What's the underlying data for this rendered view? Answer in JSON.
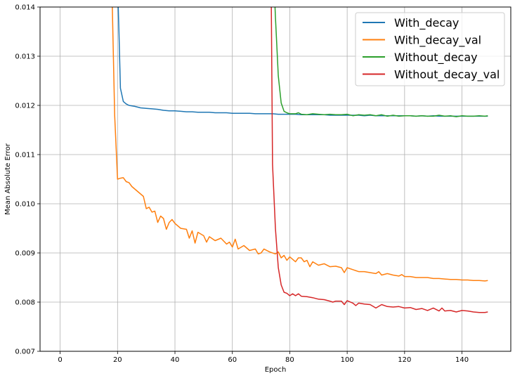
{
  "chart_data": {
    "type": "line",
    "title": "",
    "xlabel": "Epoch",
    "ylabel": "Mean Absolute Error",
    "xlim": [
      -7,
      157
    ],
    "ylim": [
      0.007,
      0.014
    ],
    "xticks": [
      0,
      20,
      40,
      60,
      80,
      100,
      120,
      140
    ],
    "yticks": [
      0.007,
      0.008,
      0.009,
      0.01,
      0.011,
      0.012,
      0.013,
      0.014
    ],
    "ytick_labels": [
      "0.007",
      "0.008",
      "0.009",
      "0.010",
      "0.011",
      "0.012",
      "0.013",
      "0.014"
    ],
    "grid": true,
    "legend_position": "upper-right",
    "series": [
      {
        "name": "With_decay",
        "color": "#1f77b4",
        "points": [
          [
            20,
            0.0145
          ],
          [
            20.5,
            0.0135
          ],
          [
            21,
            0.01235
          ],
          [
            22,
            0.01208
          ],
          [
            23,
            0.01203
          ],
          [
            24,
            0.012
          ],
          [
            26,
            0.01198
          ],
          [
            28,
            0.01195
          ],
          [
            30,
            0.01194
          ],
          [
            32,
            0.01193
          ],
          [
            34,
            0.01192
          ],
          [
            36,
            0.0119
          ],
          [
            38,
            0.01189
          ],
          [
            40,
            0.01189
          ],
          [
            42,
            0.01188
          ],
          [
            44,
            0.01187
          ],
          [
            46,
            0.01187
          ],
          [
            48,
            0.01186
          ],
          [
            50,
            0.01186
          ],
          [
            52,
            0.01186
          ],
          [
            54,
            0.01185
          ],
          [
            56,
            0.01185
          ],
          [
            58,
            0.01185
          ],
          [
            60,
            0.01184
          ],
          [
            62,
            0.01184
          ],
          [
            64,
            0.01184
          ],
          [
            66,
            0.01184
          ],
          [
            68,
            0.01183
          ],
          [
            70,
            0.01183
          ],
          [
            72,
            0.01183
          ],
          [
            74,
            0.01183
          ],
          [
            76,
            0.01182
          ],
          [
            78,
            0.01182
          ],
          [
            80,
            0.01182
          ],
          [
            82,
            0.01182
          ],
          [
            84,
            0.01181
          ],
          [
            86,
            0.01181
          ],
          [
            88,
            0.01181
          ],
          [
            90,
            0.01181
          ],
          [
            92,
            0.01181
          ],
          [
            94,
            0.0118
          ],
          [
            96,
            0.0118
          ],
          [
            98,
            0.0118
          ],
          [
            100,
            0.0118
          ],
          [
            102,
            0.0118
          ],
          [
            104,
            0.0118
          ],
          [
            106,
            0.01179
          ],
          [
            108,
            0.0118
          ],
          [
            110,
            0.01179
          ],
          [
            112,
            0.01179
          ],
          [
            114,
            0.01179
          ],
          [
            116,
            0.01179
          ],
          [
            118,
            0.01179
          ],
          [
            120,
            0.01179
          ],
          [
            122,
            0.01179
          ],
          [
            124,
            0.01178
          ],
          [
            126,
            0.01179
          ],
          [
            128,
            0.01178
          ],
          [
            130,
            0.01179
          ],
          [
            132,
            0.01178
          ],
          [
            134,
            0.01178
          ],
          [
            136,
            0.01178
          ],
          [
            138,
            0.01178
          ],
          [
            140,
            0.01178
          ],
          [
            142,
            0.01178
          ],
          [
            144,
            0.01178
          ],
          [
            146,
            0.01178
          ],
          [
            148,
            0.01178
          ],
          [
            149,
            0.01178
          ]
        ]
      },
      {
        "name": "With_decay_val",
        "color": "#ff7f0e",
        "points": [
          [
            18,
            0.0145
          ],
          [
            19,
            0.0118
          ],
          [
            20,
            0.0105
          ],
          [
            21,
            0.01052
          ],
          [
            22,
            0.01053
          ],
          [
            23,
            0.01045
          ],
          [
            24,
            0.01043
          ],
          [
            25,
            0.01035
          ],
          [
            26,
            0.0103
          ],
          [
            27,
            0.01025
          ],
          [
            28,
            0.0102
          ],
          [
            29,
            0.01015
          ],
          [
            30,
            0.0099
          ],
          [
            31,
            0.00993
          ],
          [
            32,
            0.00983
          ],
          [
            33,
            0.00985
          ],
          [
            34,
            0.00962
          ],
          [
            35,
            0.00975
          ],
          [
            36,
            0.0097
          ],
          [
            37,
            0.00948
          ],
          [
            38,
            0.00962
          ],
          [
            39,
            0.00968
          ],
          [
            40,
            0.0096
          ],
          [
            42,
            0.0095
          ],
          [
            44,
            0.00948
          ],
          [
            45,
            0.0093
          ],
          [
            46,
            0.00945
          ],
          [
            47,
            0.0092
          ],
          [
            48,
            0.00942
          ],
          [
            50,
            0.00935
          ],
          [
            51,
            0.00922
          ],
          [
            52,
            0.00933
          ],
          [
            54,
            0.00925
          ],
          [
            56,
            0.0093
          ],
          [
            58,
            0.00918
          ],
          [
            59,
            0.00922
          ],
          [
            60,
            0.00912
          ],
          [
            61,
            0.00928
          ],
          [
            62,
            0.00908
          ],
          [
            64,
            0.00915
          ],
          [
            66,
            0.00905
          ],
          [
            68,
            0.00908
          ],
          [
            69,
            0.00898
          ],
          [
            70,
            0.009
          ],
          [
            71,
            0.00908
          ],
          [
            73,
            0.00902
          ],
          [
            75,
            0.00898
          ],
          [
            76,
            0.00902
          ],
          [
            77,
            0.0089
          ],
          [
            78,
            0.00895
          ],
          [
            79,
            0.00885
          ],
          [
            80,
            0.00892
          ],
          [
            82,
            0.00882
          ],
          [
            83,
            0.0089
          ],
          [
            84,
            0.0089
          ],
          [
            85,
            0.00882
          ],
          [
            86,
            0.00885
          ],
          [
            87,
            0.00872
          ],
          [
            88,
            0.00882
          ],
          [
            90,
            0.00875
          ],
          [
            92,
            0.00878
          ],
          [
            94,
            0.00872
          ],
          [
            96,
            0.00873
          ],
          [
            98,
            0.0087
          ],
          [
            99,
            0.0086
          ],
          [
            100,
            0.0087
          ],
          [
            102,
            0.00866
          ],
          [
            104,
            0.00862
          ],
          [
            106,
            0.00862
          ],
          [
            108,
            0.0086
          ],
          [
            110,
            0.00858
          ],
          [
            111,
            0.00862
          ],
          [
            112,
            0.00855
          ],
          [
            114,
            0.00858
          ],
          [
            116,
            0.00855
          ],
          [
            118,
            0.00853
          ],
          [
            119,
            0.00856
          ],
          [
            120,
            0.00852
          ],
          [
            122,
            0.00852
          ],
          [
            124,
            0.0085
          ],
          [
            126,
            0.0085
          ],
          [
            128,
            0.0085
          ],
          [
            130,
            0.00848
          ],
          [
            132,
            0.00848
          ],
          [
            134,
            0.00847
          ],
          [
            136,
            0.00846
          ],
          [
            138,
            0.00846
          ],
          [
            140,
            0.00845
          ],
          [
            142,
            0.00845
          ],
          [
            144,
            0.00844
          ],
          [
            146,
            0.00844
          ],
          [
            148,
            0.00843
          ],
          [
            149,
            0.00844
          ]
        ]
      },
      {
        "name": "Without_decay",
        "color": "#2ca02c",
        "points": [
          [
            74.5,
            0.0145
          ],
          [
            75,
            0.0138
          ],
          [
            76,
            0.0126
          ],
          [
            77,
            0.01205
          ],
          [
            78,
            0.01188
          ],
          [
            79,
            0.01185
          ],
          [
            80,
            0.01183
          ],
          [
            82,
            0.01183
          ],
          [
            83,
            0.01185
          ],
          [
            84,
            0.01182
          ],
          [
            86,
            0.01181
          ],
          [
            88,
            0.01183
          ],
          [
            90,
            0.01182
          ],
          [
            92,
            0.01181
          ],
          [
            94,
            0.01182
          ],
          [
            96,
            0.01181
          ],
          [
            98,
            0.01181
          ],
          [
            100,
            0.01182
          ],
          [
            102,
            0.01179
          ],
          [
            104,
            0.01181
          ],
          [
            106,
            0.0118
          ],
          [
            108,
            0.01181
          ],
          [
            110,
            0.01179
          ],
          [
            112,
            0.01181
          ],
          [
            114,
            0.01178
          ],
          [
            116,
            0.0118
          ],
          [
            118,
            0.01178
          ],
          [
            120,
            0.01179
          ],
          [
            122,
            0.01179
          ],
          [
            124,
            0.01178
          ],
          [
            126,
            0.01179
          ],
          [
            128,
            0.01178
          ],
          [
            130,
            0.01178
          ],
          [
            132,
            0.0118
          ],
          [
            134,
            0.01178
          ],
          [
            136,
            0.01179
          ],
          [
            138,
            0.01177
          ],
          [
            140,
            0.01179
          ],
          [
            142,
            0.01178
          ],
          [
            144,
            0.01178
          ],
          [
            146,
            0.01179
          ],
          [
            148,
            0.01178
          ],
          [
            149,
            0.01179
          ]
        ]
      },
      {
        "name": "Without_decay_val",
        "color": "#d62728",
        "points": [
          [
            73.5,
            0.0145
          ],
          [
            74,
            0.0108
          ],
          [
            75,
            0.0095
          ],
          [
            76,
            0.0087
          ],
          [
            77,
            0.00835
          ],
          [
            78,
            0.0082
          ],
          [
            79,
            0.00818
          ],
          [
            80,
            0.00813
          ],
          [
            81,
            0.00817
          ],
          [
            82,
            0.00813
          ],
          [
            83,
            0.00817
          ],
          [
            84,
            0.00812
          ],
          [
            86,
            0.00811
          ],
          [
            88,
            0.00809
          ],
          [
            90,
            0.00806
          ],
          [
            92,
            0.00805
          ],
          [
            94,
            0.00802
          ],
          [
            95,
            0.008
          ],
          [
            96,
            0.00802
          ],
          [
            98,
            0.00802
          ],
          [
            99,
            0.00795
          ],
          [
            100,
            0.00803
          ],
          [
            102,
            0.00798
          ],
          [
            103,
            0.00793
          ],
          [
            104,
            0.00798
          ],
          [
            106,
            0.00796
          ],
          [
            108,
            0.00795
          ],
          [
            110,
            0.00788
          ],
          [
            112,
            0.00795
          ],
          [
            114,
            0.00791
          ],
          [
            116,
            0.0079
          ],
          [
            118,
            0.00791
          ],
          [
            120,
            0.00788
          ],
          [
            122,
            0.00789
          ],
          [
            124,
            0.00785
          ],
          [
            126,
            0.00787
          ],
          [
            128,
            0.00783
          ],
          [
            130,
            0.00788
          ],
          [
            132,
            0.00782
          ],
          [
            133,
            0.00788
          ],
          [
            134,
            0.00782
          ],
          [
            136,
            0.00783
          ],
          [
            138,
            0.0078
          ],
          [
            140,
            0.00783
          ],
          [
            142,
            0.00782
          ],
          [
            144,
            0.0078
          ],
          [
            146,
            0.00779
          ],
          [
            148,
            0.00779
          ],
          [
            149,
            0.0078
          ]
        ]
      }
    ]
  }
}
